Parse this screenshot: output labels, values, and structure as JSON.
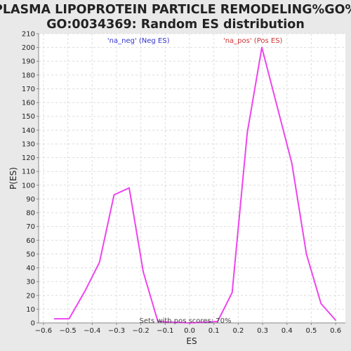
{
  "chart_data": {
    "type": "line",
    "title_line1": "PLASMA LIPOPROTEIN PARTICLE REMODELING%GO%",
    "title_line2": "GO:0034369: Random ES distribution",
    "xlabel": "ES",
    "ylabel": "P(ES)",
    "xlim": [
      -0.62,
      0.64
    ],
    "ylim": [
      0,
      210
    ],
    "xticks": [
      -0.6,
      -0.5,
      -0.4,
      -0.3,
      -0.2,
      -0.1,
      0.0,
      0.1,
      0.2,
      0.3,
      0.4,
      0.5,
      0.6
    ],
    "xtick_labels": [
      "−0.6",
      "−0.5",
      "−0.4",
      "−0.3",
      "−0.2",
      "−0.1",
      "0.0",
      "0.1",
      "0.2",
      "0.3",
      "0.4",
      "0.5",
      "0.6"
    ],
    "yticks": [
      0,
      10,
      20,
      30,
      40,
      50,
      60,
      70,
      80,
      90,
      100,
      110,
      120,
      130,
      140,
      150,
      160,
      170,
      180,
      190,
      200,
      210
    ],
    "grid": true,
    "legend": [
      {
        "label": "'na_neg' (Neg ES)",
        "color": "#3333cc",
        "x_data": -0.21
      },
      {
        "label": "'na_pos' (Pos ES)",
        "color": "#cc3333",
        "x_data": 0.26
      }
    ],
    "annotation": "Sets with pos scores: 70%",
    "series": [
      {
        "color": "#ee44ee",
        "points": [
          [
            -0.555,
            3
          ],
          [
            -0.495,
            3
          ],
          [
            -0.43,
            23
          ],
          [
            -0.37,
            44
          ],
          [
            -0.31,
            93
          ],
          [
            -0.248,
            98
          ],
          [
            -0.19,
            37
          ],
          [
            -0.13,
            1
          ],
          [
            0.0,
            0
          ],
          [
            0.115,
            1
          ],
          [
            0.175,
            22
          ],
          [
            0.237,
            138
          ],
          [
            0.297,
            200
          ],
          [
            0.36,
            157
          ],
          [
            0.42,
            116
          ],
          [
            0.48,
            50
          ],
          [
            0.54,
            14
          ],
          [
            0.6,
            2
          ]
        ]
      }
    ]
  }
}
